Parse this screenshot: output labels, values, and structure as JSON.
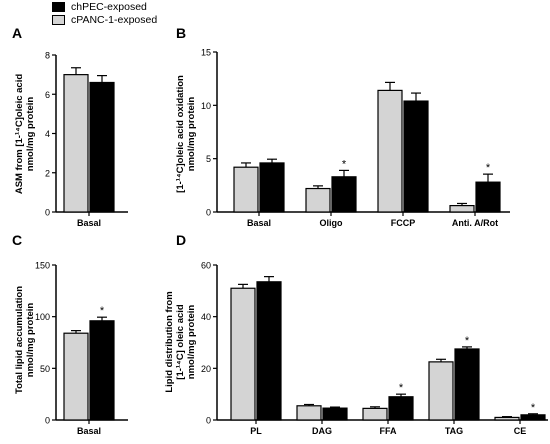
{
  "colors": {
    "chpec": "#000000",
    "cpanc": "#d4d4d4",
    "axis": "#000000"
  },
  "legend": [
    {
      "label": "chPEC-exposed",
      "color": "#000000"
    },
    {
      "label": "cPANC-1-exposed",
      "color": "#d4d4d4"
    }
  ],
  "chart_data": [
    {
      "panel": "A",
      "type": "bar",
      "ylabel_lines": [
        "ASM from [1-¹⁴C]oleic acid",
        "nmol/mg protein"
      ],
      "ylim": [
        0,
        8
      ],
      "yticks": [
        0,
        2,
        4,
        6,
        8
      ],
      "categories": [
        "Basal"
      ],
      "series": [
        {
          "name": "cPANC-1-exposed",
          "values": [
            7.0
          ],
          "errors": [
            0.35
          ]
        },
        {
          "name": "chPEC-exposed",
          "values": [
            6.6
          ],
          "errors": [
            0.35
          ]
        }
      ],
      "significance": [
        false
      ]
    },
    {
      "panel": "B",
      "type": "bar",
      "ylabel_lines": [
        "[1-¹⁴C]oleic acid oxidation",
        "nmol/mg protein"
      ],
      "ylim": [
        0,
        15
      ],
      "yticks": [
        0,
        5,
        10,
        15
      ],
      "categories": [
        "Basal",
        "Oligo",
        "FCCP",
        "Anti. A/Rot"
      ],
      "series": [
        {
          "name": "cPANC-1-exposed",
          "values": [
            4.2,
            2.2,
            11.4,
            0.6
          ],
          "errors": [
            0.4,
            0.25,
            0.75,
            0.2
          ]
        },
        {
          "name": "chPEC-exposed",
          "values": [
            4.6,
            3.3,
            10.4,
            2.8
          ],
          "errors": [
            0.35,
            0.6,
            0.75,
            0.75
          ]
        }
      ],
      "significance": [
        false,
        true,
        false,
        true
      ]
    },
    {
      "panel": "C",
      "type": "bar",
      "ylabel_lines": [
        "Total lipid accumulation",
        "nmol/mg protein"
      ],
      "ylim": [
        0,
        150
      ],
      "yticks": [
        0,
        50,
        100,
        150
      ],
      "categories": [
        "Basal"
      ],
      "series": [
        {
          "name": "cPANC-1-exposed",
          "values": [
            84
          ],
          "errors": [
            2.5
          ]
        },
        {
          "name": "chPEC-exposed",
          "values": [
            96
          ],
          "errors": [
            3.5
          ]
        }
      ],
      "significance": [
        true
      ]
    },
    {
      "panel": "D",
      "type": "bar",
      "ylabel_lines": [
        "Lipid distribution from",
        "[1-¹⁴C] oleic acid",
        "nmol/mg protein"
      ],
      "ylim": [
        0,
        60
      ],
      "yticks": [
        0,
        20,
        40,
        60
      ],
      "categories": [
        "PL",
        "DAG",
        "FFA",
        "TAG",
        "CE"
      ],
      "series": [
        {
          "name": "cPANC-1-exposed",
          "values": [
            51,
            5.5,
            4.5,
            22.5,
            1.0
          ],
          "errors": [
            1.5,
            0.5,
            0.6,
            1.0,
            0.3
          ]
        },
        {
          "name": "chPEC-exposed",
          "values": [
            53.5,
            4.6,
            9.0,
            27.5,
            2.0
          ],
          "errors": [
            2.0,
            0.4,
            1.0,
            0.8,
            0.4
          ]
        }
      ],
      "significance": [
        false,
        false,
        true,
        true,
        true
      ]
    }
  ]
}
